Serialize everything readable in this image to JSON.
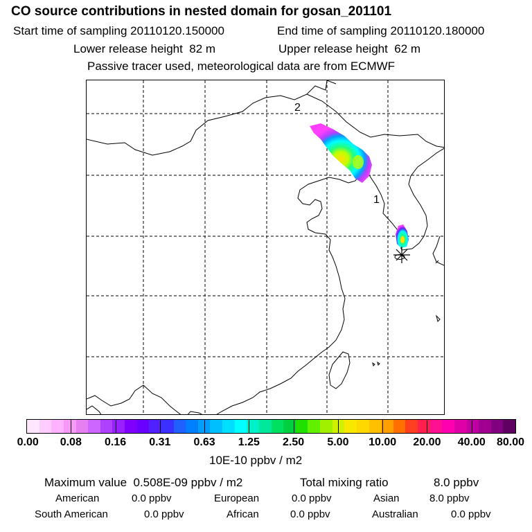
{
  "header": {
    "title": "CO  source contributions in nested domain for gosan_201101",
    "start_label": "Start time of sampling",
    "start_time": "20110120.150000",
    "end_label": "End time of sampling",
    "end_time": "20110120.180000",
    "lower_label": "Lower release height",
    "lower_value": "82 m",
    "upper_label": "Upper release height",
    "upper_value": "62 m",
    "note": "Passive tracer used, meteorological data are from ECMWF"
  },
  "map": {
    "markers": [
      {
        "label": "2"
      },
      {
        "label": "1"
      }
    ],
    "receptor_symbol": "asterisk",
    "plume_colors": [
      "#ff40ff",
      "#b040ff",
      "#6020ff",
      "#00a0ff",
      "#00ffff",
      "#20ff80",
      "#c0ff00",
      "#ffe000"
    ]
  },
  "colorbar": {
    "segment_colors": [
      "#ffe6ff",
      "#ffccff",
      "#ffb3ff",
      "#f799f7",
      "#e680f0",
      "#cc66ff",
      "#b040ff",
      "#9920ff",
      "#8000ff",
      "#6a00ff",
      "#5020ff",
      "#3a30ff",
      "#2060ff",
      "#0080ff",
      "#009fff",
      "#00bfff",
      "#00dfff",
      "#00ffff",
      "#00f0c8",
      "#00e89b",
      "#00e060",
      "#00d040",
      "#20e000",
      "#60f000",
      "#a0f000",
      "#d0f000",
      "#f8e800",
      "#ffd800",
      "#ffc000",
      "#ffa000",
      "#ff7000",
      "#ff4020",
      "#ff2050",
      "#ff1090",
      "#ff00b0",
      "#e000a8",
      "#c000a0",
      "#a00090",
      "#800080",
      "#600060"
    ],
    "ticks": [
      "0.00",
      "0.08",
      "0.16",
      "0.31",
      "0.63",
      "1.25",
      "2.50",
      "5.00",
      "10.00",
      "20.00",
      "40.00",
      "80.00"
    ],
    "unit": "10E-10 ppbv / m2"
  },
  "stats": {
    "max_label": "Maximum value",
    "max_value": "0.508E-09 ppbv / m2",
    "total_label": "Total mixing ratio",
    "total_value": "8.0 ppbv",
    "regions": [
      {
        "name": "American",
        "value": "0.0 ppbv"
      },
      {
        "name": "European",
        "value": "0.0 ppbv"
      },
      {
        "name": "Asian",
        "value": "8.0 ppbv"
      },
      {
        "name": "South American",
        "value": "0.0 ppbv"
      },
      {
        "name": "African",
        "value": "0.0 ppbv"
      },
      {
        "name": "Australian",
        "value": "0.0 ppbv"
      }
    ]
  }
}
